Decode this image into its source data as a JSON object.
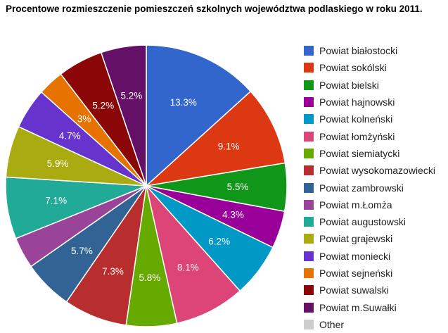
{
  "chart_data": {
    "type": "pie",
    "title": "Procentowe rozmieszczenie pomieszczeń szkolnych województwa podlaskiego w roku 2011.",
    "legend_position": "right",
    "slices": [
      {
        "label": "Powiat białostocki",
        "value": 13.3,
        "display": "13.3%",
        "color": "#3366cc"
      },
      {
        "label": "Powiat sokólski",
        "value": 9.1,
        "display": "9.1%",
        "color": "#dc3912"
      },
      {
        "label": "Powiat bielski",
        "value": 5.5,
        "display": "5.5%",
        "color": "#109618"
      },
      {
        "label": "Powiat hajnowski",
        "value": 4.3,
        "display": "4.3%",
        "color": "#990099"
      },
      {
        "label": "Powiat kolneński",
        "value": 6.2,
        "display": "6.2%",
        "color": "#0099c6"
      },
      {
        "label": "Powiat łomżyński",
        "value": 8.1,
        "display": "8.1%",
        "color": "#dd4477"
      },
      {
        "label": "Powiat siemiatycki",
        "value": 5.8,
        "display": "5.8%",
        "color": "#66aa00"
      },
      {
        "label": "Powiat wysokomazowiecki",
        "value": 7.3,
        "display": "7.3%",
        "color": "#b82e2e"
      },
      {
        "label": "Powiat zambrowski",
        "value": 5.7,
        "display": "5.7%",
        "color": "#316395"
      },
      {
        "label": "Powiat m.Łomża",
        "value": 3.6,
        "display": "",
        "color": "#994499"
      },
      {
        "label": "Powiat augustowski",
        "value": 7.1,
        "display": "7.1%",
        "color": "#22aa99"
      },
      {
        "label": "Powiat grajewski",
        "value": 5.9,
        "display": "5.9%",
        "color": "#aaaa11"
      },
      {
        "label": "Powiat moniecki",
        "value": 4.7,
        "display": "4.7%",
        "color": "#6633cc"
      },
      {
        "label": "Powiat sejneński",
        "value": 3.0,
        "display": "3%",
        "color": "#e67300"
      },
      {
        "label": "Powiat suwalski",
        "value": 5.2,
        "display": "5.2%",
        "color": "#8b0707"
      },
      {
        "label": "Powiat m.Suwałki",
        "value": 5.2,
        "display": "5.2%",
        "color": "#651067"
      },
      {
        "label": "Other",
        "value": 0,
        "display": "",
        "color": "#cccccc"
      }
    ]
  }
}
